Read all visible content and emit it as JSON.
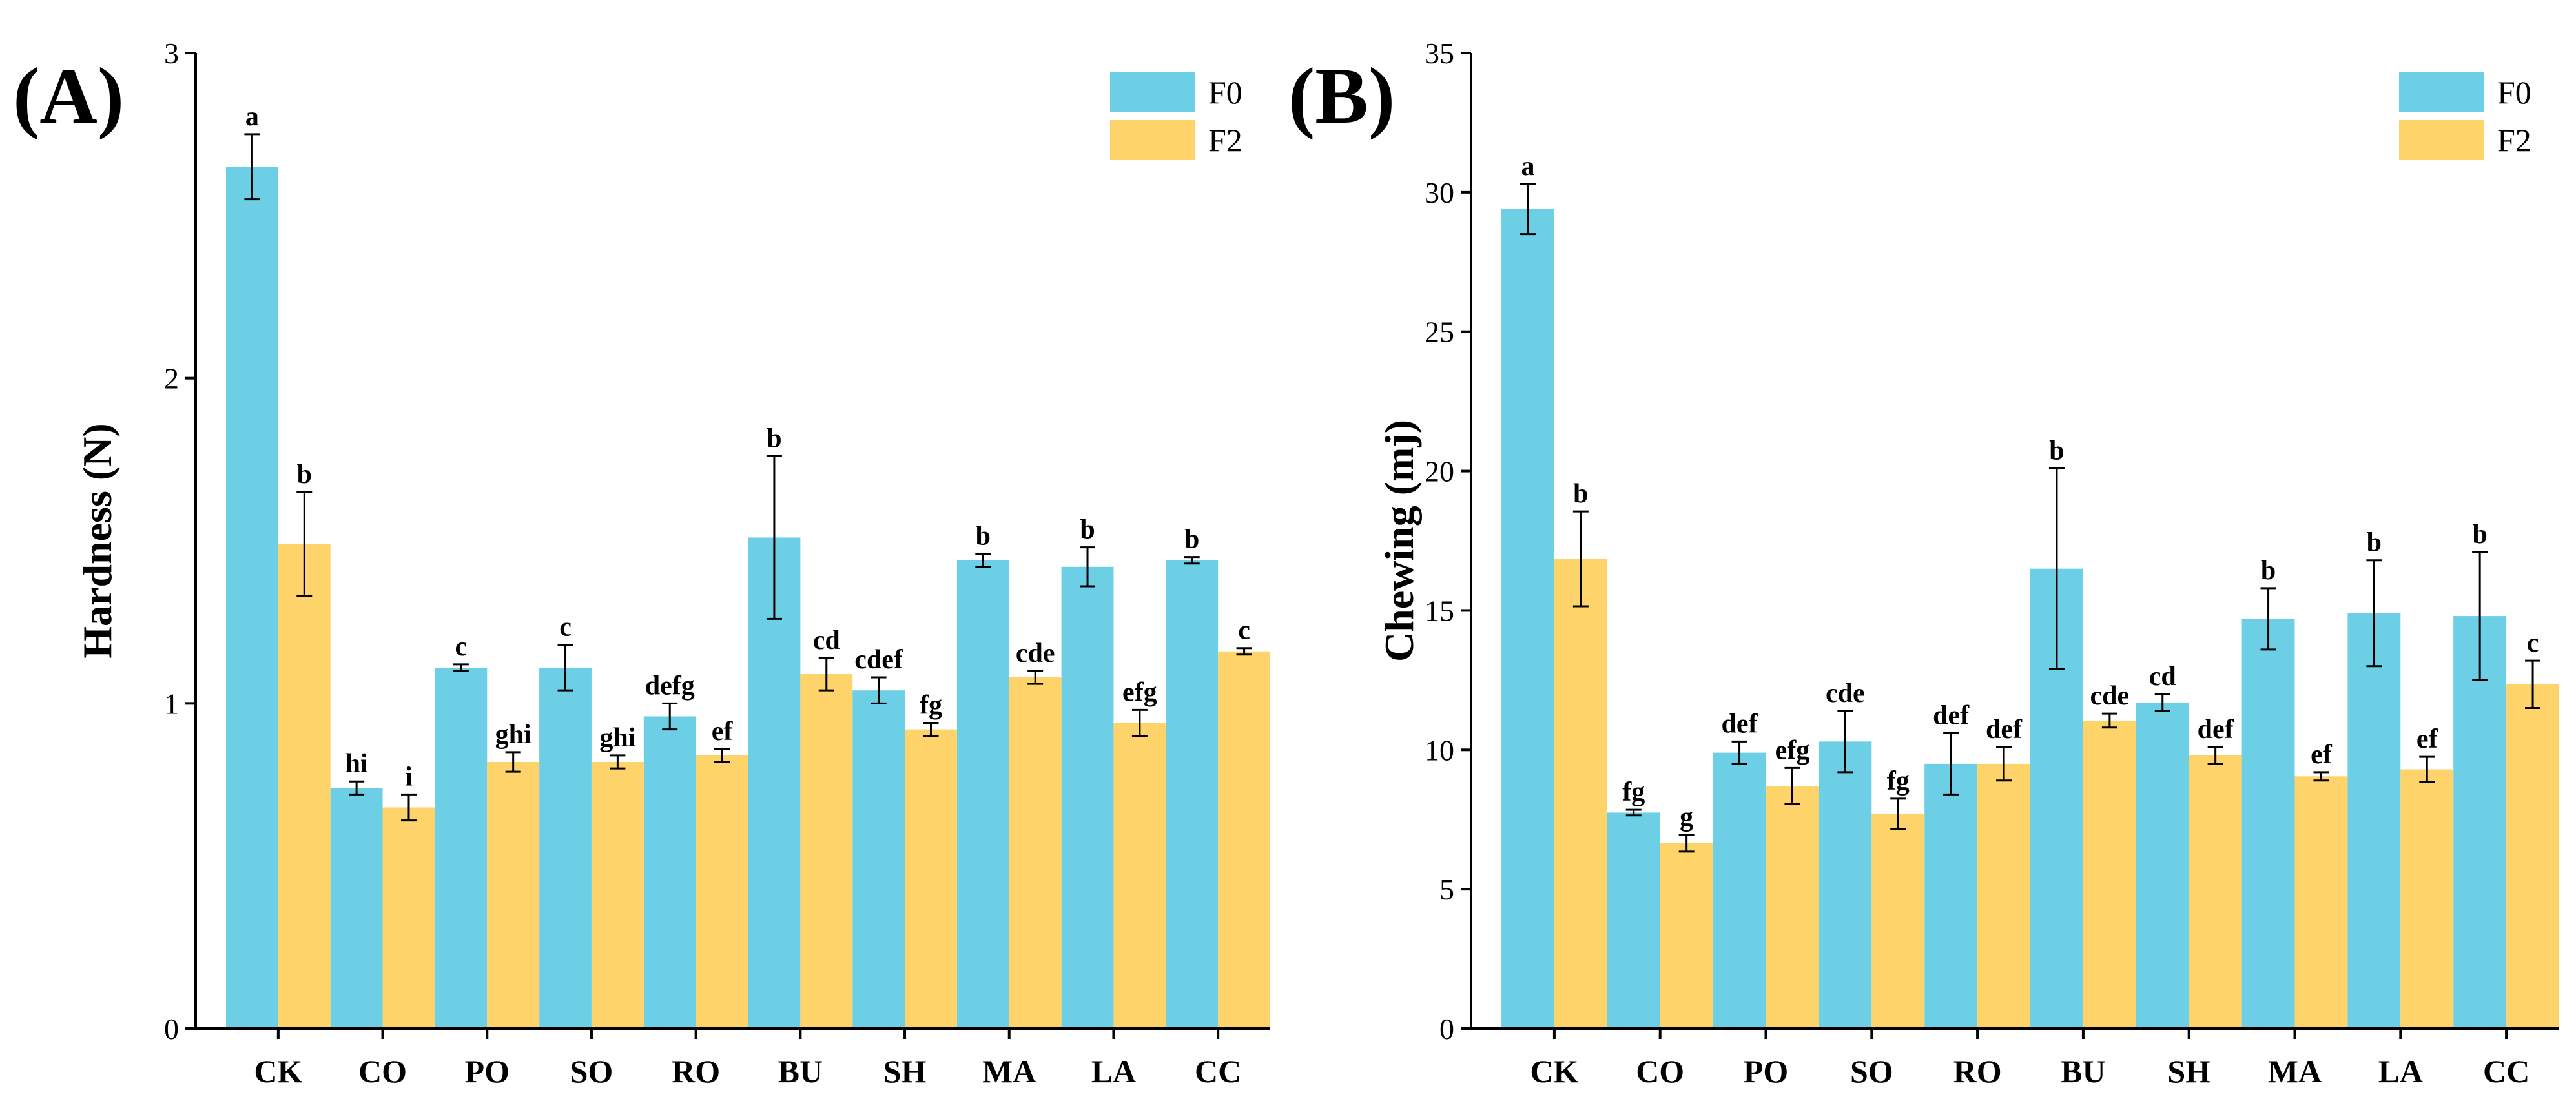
{
  "colors": {
    "F0": "#6DCFE6",
    "F2": "#FDD36A"
  },
  "chart_data": [
    {
      "type": "bar",
      "panel_label": "(A)",
      "ylabel": "Hardness (N)",
      "xlabel": "",
      "ylim": [
        0,
        3
      ],
      "yticks": [
        "0",
        "1",
        "2",
        "3"
      ],
      "yticks_values": [
        0,
        1,
        2,
        3
      ],
      "categories": [
        "CK",
        "CO",
        "PO",
        "SO",
        "RO",
        "BU",
        "SH",
        "MA",
        "LA",
        "CC"
      ],
      "legend": [
        "F0",
        "F2"
      ],
      "legend_position": "top-right",
      "series": [
        {
          "name": "F0",
          "values": [
            2.65,
            0.74,
            1.11,
            1.11,
            0.96,
            1.51,
            1.04,
            1.44,
            1.42,
            1.44
          ],
          "errors": [
            0.1,
            0.02,
            0.01,
            0.07,
            0.04,
            0.25,
            0.04,
            0.02,
            0.06,
            0.01
          ],
          "labels": [
            "a",
            "hi",
            "c",
            "c",
            "defg",
            "b",
            "cdef",
            "b",
            "b",
            "b"
          ]
        },
        {
          "name": "F2",
          "values": [
            1.49,
            0.68,
            0.82,
            0.82,
            0.84,
            1.09,
            0.92,
            1.08,
            0.94,
            1.16
          ],
          "errors": [
            0.16,
            0.04,
            0.03,
            0.02,
            0.02,
            0.05,
            0.02,
            0.02,
            0.04,
            0.01
          ],
          "labels": [
            "b",
            "i",
            "ghi",
            "ghi",
            "ef",
            "cd",
            "fg",
            "cde",
            "efg",
            "c"
          ]
        }
      ]
    },
    {
      "type": "bar",
      "panel_label": "(B)",
      "ylabel": "Chewing (mj)",
      "xlabel": "",
      "ylim": [
        0,
        35
      ],
      "yticks": [
        "0",
        "5",
        "10",
        "15",
        "20",
        "25",
        "30",
        "35"
      ],
      "yticks_values": [
        0,
        5,
        10,
        15,
        20,
        25,
        30,
        35
      ],
      "categories": [
        "CK",
        "CO",
        "PO",
        "SO",
        "RO",
        "BU",
        "SH",
        "MA",
        "LA",
        "CC"
      ],
      "legend": [
        "F0",
        "F2"
      ],
      "legend_position": "top-right",
      "series": [
        {
          "name": "F0",
          "values": [
            29.4,
            7.75,
            9.9,
            10.3,
            9.5,
            16.5,
            11.7,
            14.7,
            14.9,
            14.8
          ],
          "errors": [
            0.9,
            0.1,
            0.4,
            1.1,
            1.1,
            3.6,
            0.3,
            1.1,
            1.9,
            2.3
          ],
          "labels": [
            "a",
            "fg",
            "def",
            "cde",
            "def",
            "b",
            "cd",
            "b",
            "b",
            "b"
          ]
        },
        {
          "name": "F2",
          "values": [
            16.85,
            6.65,
            8.7,
            7.7,
            9.5,
            11.05,
            9.8,
            9.05,
            9.3,
            12.35
          ],
          "errors": [
            1.7,
            0.3,
            0.65,
            0.55,
            0.6,
            0.25,
            0.3,
            0.15,
            0.45,
            0.85
          ],
          "labels": [
            "b",
            "g",
            "efg",
            "fg",
            "def",
            "cde",
            "def",
            "ef",
            "ef",
            "c"
          ]
        }
      ]
    }
  ]
}
